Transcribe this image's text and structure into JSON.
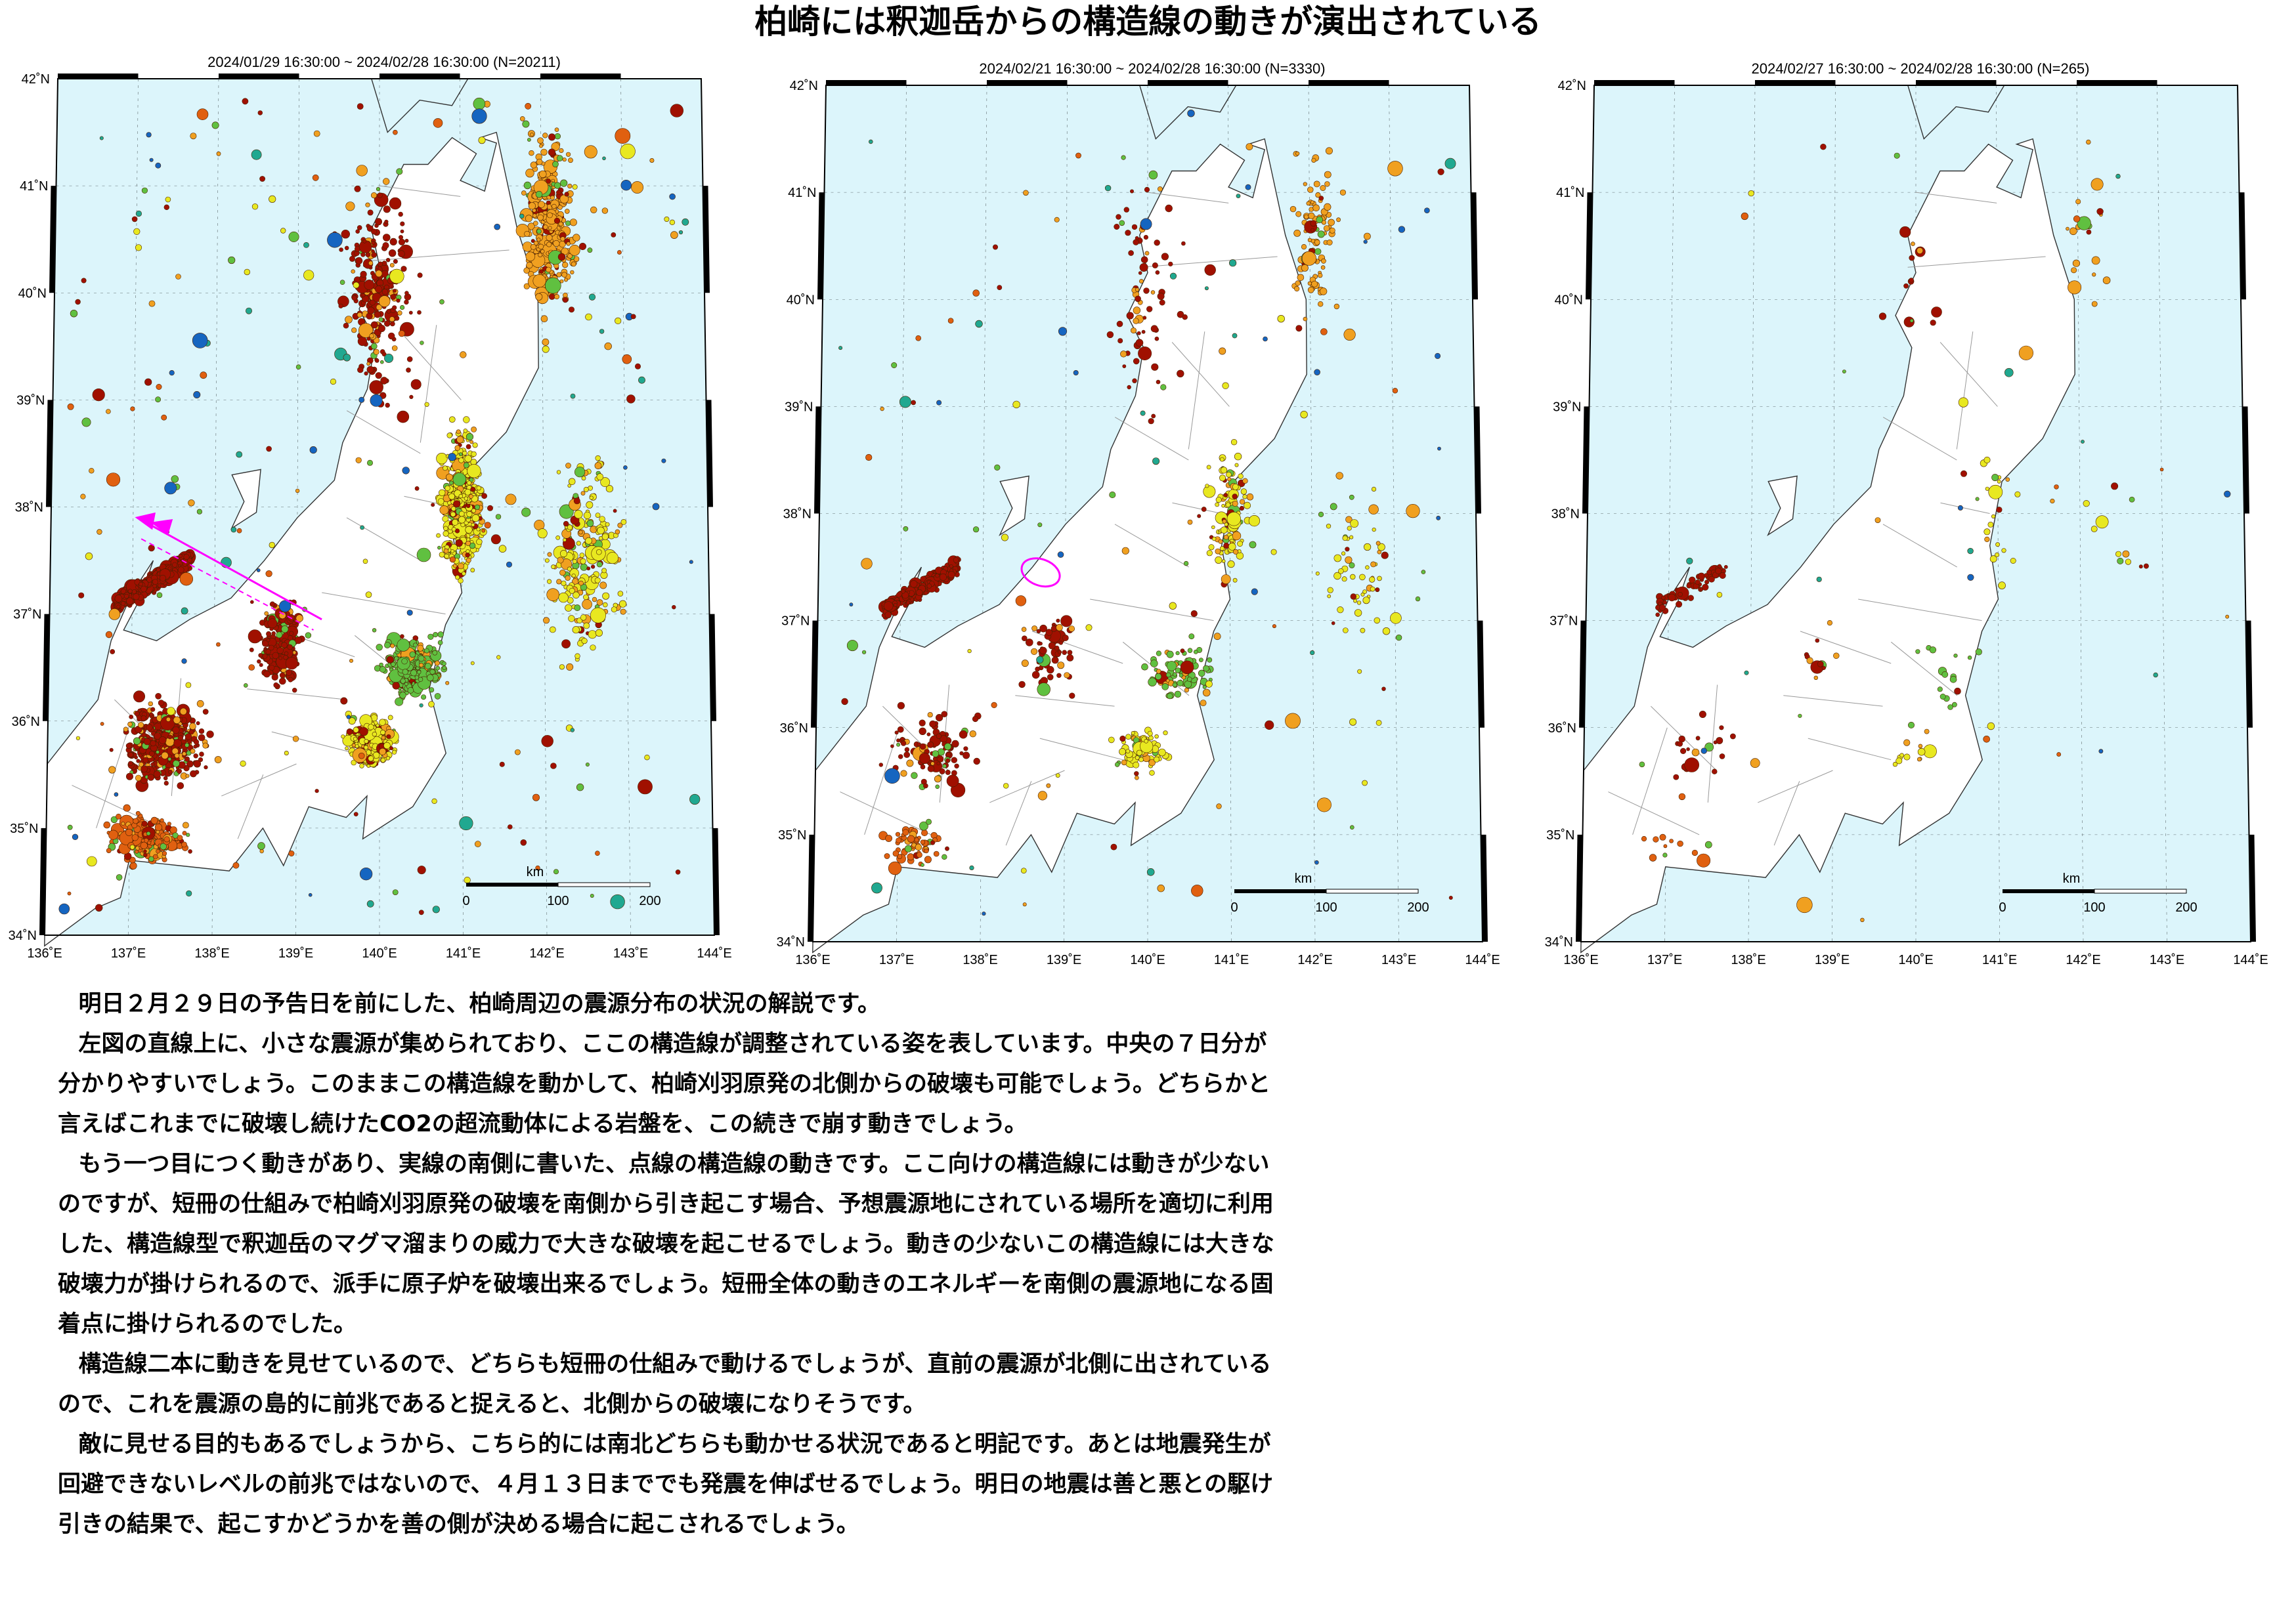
{
  "title": "柏崎には釈迦岳からの構造線の動きが演出されている",
  "colors": {
    "sea": "#dcf5fb",
    "land": "#ffffff",
    "border": "#999999",
    "frame": "#000000",
    "deep": "#a01000",
    "mid": "#e06010",
    "orange": "#f0a020",
    "yellow": "#e8e820",
    "green": "#60c040",
    "teal": "#20a890",
    "blue": "#1565c0",
    "annotation": "#ff00ff"
  },
  "maps": [
    {
      "caption": "2024/01/29 16:30:00 ~ 2024/02/28 16:30:00 (N=20211)",
      "lat_labels": [
        "42˚N",
        "41˚N",
        "40˚N",
        "39˚N",
        "38˚N",
        "37˚N",
        "36˚N",
        "35˚N",
        "34˚N"
      ],
      "lon_labels": [
        "136˚E",
        "137˚E",
        "138˚E",
        "139˚E",
        "140˚E",
        "141˚E",
        "142˚E",
        "143˚E",
        "144˚E"
      ],
      "scale": {
        "unit": "km",
        "ticks": [
          "0",
          "100",
          "200"
        ]
      },
      "annotation": {
        "kind": "structural-line-arrow",
        "color": "magenta"
      }
    },
    {
      "caption": "2024/02/21 16:30:00 ~ 2024/02/28 16:30:00 (N=3330)",
      "lat_labels": [
        "42˚N",
        "41˚N",
        "40˚N",
        "39˚N",
        "38˚N",
        "37˚N",
        "36˚N",
        "35˚N",
        "34˚N"
      ],
      "lon_labels": [
        "136˚E",
        "137˚E",
        "138˚E",
        "139˚E",
        "140˚E",
        "141˚E",
        "142˚E",
        "143˚E",
        "144˚E"
      ],
      "scale": {
        "unit": "km",
        "ticks": [
          "0",
          "100",
          "200"
        ]
      },
      "annotation": {
        "kind": "ellipse",
        "color": "magenta"
      }
    },
    {
      "caption": "2024/02/27 16:30:00 ~ 2024/02/28 16:30:00 (N=265)",
      "lat_labels": [
        "42˚N",
        "41˚N",
        "40˚N",
        "39˚N",
        "38˚N",
        "37˚N",
        "36˚N",
        "35˚N",
        "34˚N"
      ],
      "lon_labels": [
        "136˚E",
        "137˚E",
        "138˚E",
        "139˚E",
        "140˚E",
        "141˚E",
        "142˚E",
        "143˚E",
        "144˚E"
      ],
      "scale": {
        "unit": "km",
        "ticks": [
          "0",
          "100",
          "200"
        ]
      },
      "annotation": null
    }
  ],
  "paragraphs": [
    "明日２月２９日の予告日を前にした、柏崎周辺の震源分布の状況の解説です。",
    "左図の直線上に、小さな震源が集められており、ここの構造線が調整されている姿を表しています。中央の７日分が分かりやすいでしょう。このままこの構造線を動かして、柏崎刈羽原発の北側からの破壊も可能でしょう。どちらかと言えばこれまでに破壊し続けたCO2の超流動体による岩盤を、この続きで崩す動きでしょう。",
    "もう一つ目につく動きがあり、実線の南側に書いた、点線の構造線の動きです。ここ向けの構造線には動きが少ないのですが、短冊の仕組みで柏崎刈羽原発の破壊を南側から引き起こす場合、予想震源地にされている場所を適切に利用した、構造線型で釈迦岳のマグマ溜まりの威力で大きな破壊を起こせるでしょう。動きの少ないこの構造線には大きな破壊力が掛けられるので、派手に原子炉を破壊出来るでしょう。短冊全体の動きのエネルギーを南側の震源地になる固着点に掛けられるのでした。",
    "構造線二本に動きを見せているので、どちらも短冊の仕組みで動けるでしょうが、直前の震源が北側に出されているので、これを震源の島的に前兆であると捉えると、北側からの破壊になりそうです。",
    "敵に見せる目的もあるでしょうから、こちら的には南北どちらも動かせる状況であると明記です。あとは地震発生が回避できないレベルの前兆ではないので、４月１３日まででも発震を伸ばせるでしょう。明日の地震は善と悪との駆け引きの結果で、起こすかどうかを善の側が決める場合に起こされるでしょう。"
  ]
}
